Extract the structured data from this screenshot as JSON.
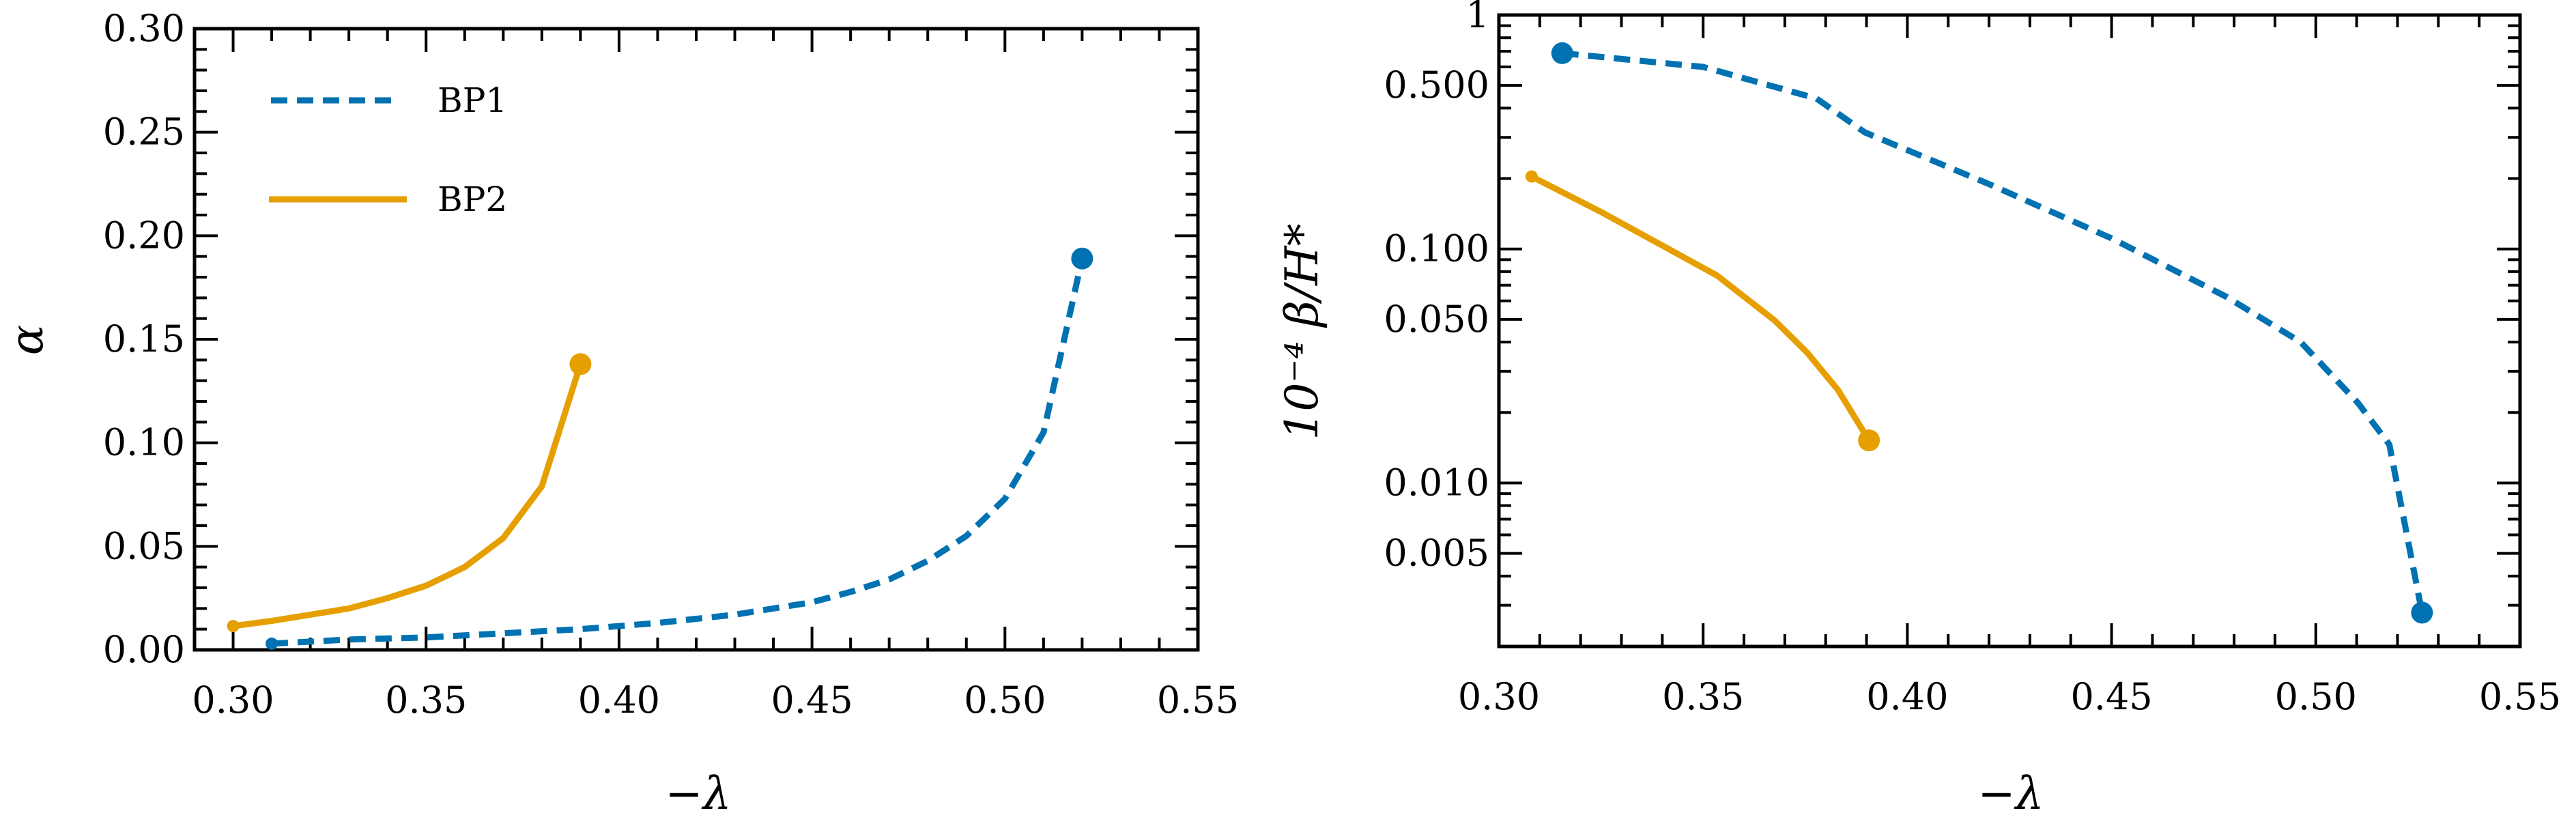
{
  "colors": {
    "BP1": "#0072B2",
    "BP2": "#E69F00"
  },
  "chart_data": [
    {
      "type": "line",
      "xlabel": "−λ",
      "ylabel": "α",
      "xlim": [
        0.29,
        0.55
      ],
      "ylim": [
        0,
        0.3
      ],
      "yscale": "linear",
      "xticks": [
        0.3,
        0.35,
        0.4,
        0.45,
        0.5,
        0.55
      ],
      "xtick_labels": [
        "0.30",
        "0.35",
        "0.40",
        "0.45",
        "0.50",
        "0.55"
      ],
      "yticks": [
        0,
        0.05,
        0.1,
        0.15,
        0.2,
        0.25,
        0.3
      ],
      "ytick_labels": [
        "0.00",
        "0.05",
        "0.10",
        "0.15",
        "0.20",
        "0.25",
        "0.30"
      ],
      "legend": {
        "placement": "top-left",
        "entries": [
          "BP1",
          "BP2"
        ]
      },
      "grid": false,
      "series": [
        {
          "name": "BP1",
          "style": "dashed",
          "x": [
            0.31,
            0.33,
            0.35,
            0.37,
            0.39,
            0.41,
            0.43,
            0.45,
            0.46,
            0.47,
            0.48,
            0.49,
            0.5,
            0.51,
            0.52
          ],
          "y": [
            0.003,
            0.005,
            0.006,
            0.008,
            0.01,
            0.013,
            0.017,
            0.023,
            0.028,
            0.034,
            0.043,
            0.055,
            0.073,
            0.105,
            0.189
          ]
        },
        {
          "name": "BP2",
          "style": "solid",
          "x": [
            0.3,
            0.31,
            0.32,
            0.33,
            0.34,
            0.35,
            0.36,
            0.37,
            0.38,
            0.39
          ],
          "y": [
            0.0115,
            0.014,
            0.017,
            0.02,
            0.025,
            0.031,
            0.04,
            0.054,
            0.079,
            0.138
          ]
        }
      ]
    },
    {
      "type": "line",
      "xlabel": "−λ",
      "ylabel": "10⁻⁴ β/H*",
      "xlim": [
        0.3,
        0.55
      ],
      "ylim": [
        0.002,
        1
      ],
      "yscale": "log",
      "xticks": [
        0.3,
        0.35,
        0.4,
        0.45,
        0.5,
        0.55
      ],
      "xtick_labels": [
        "0.30",
        "0.35",
        "0.40",
        "0.45",
        "0.50",
        "0.55"
      ],
      "yticks": [
        1,
        0.5,
        0.1,
        0.05,
        0.01,
        0.005
      ],
      "ytick_labels": [
        "1",
        "0.500",
        "0.100",
        "0.050",
        "0.010",
        "0.005"
      ],
      "grid": false,
      "series": [
        {
          "name": "BP1",
          "style": "dashed",
          "x": [
            0.3155,
            0.35,
            0.3777,
            0.3896,
            0.4198,
            0.45,
            0.478,
            0.4963,
            0.5103,
            0.518,
            0.526
          ],
          "y": [
            0.687,
            0.6,
            0.44,
            0.315,
            0.19,
            0.111,
            0.0626,
            0.04,
            0.022,
            0.0146,
            0.00279
          ]
        },
        {
          "name": "BP2",
          "style": "solid",
          "x": [
            0.308,
            0.325,
            0.3534,
            0.3675,
            0.3755,
            0.383,
            0.3906
          ],
          "y": [
            0.204,
            0.144,
            0.077,
            0.0495,
            0.036,
            0.025,
            0.0152
          ]
        }
      ]
    }
  ]
}
